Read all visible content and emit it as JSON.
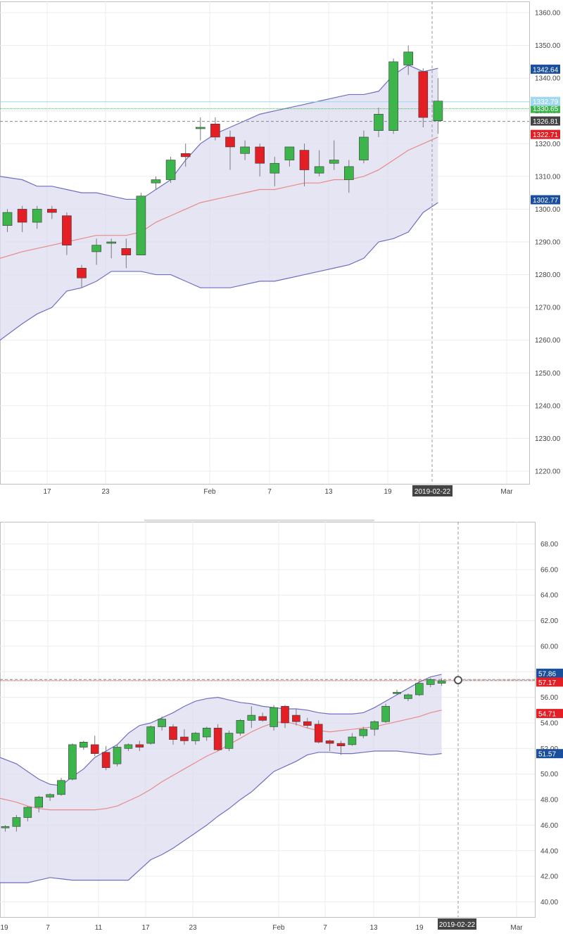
{
  "chart_data": [
    {
      "type": "candlestick",
      "title": "",
      "xlabel": "",
      "ylabel": "",
      "ylim": [
        1215,
        1365
      ],
      "y_ticks": [
        "1220.00",
        "1230.00",
        "1240.00",
        "1250.00",
        "1260.00",
        "1270.00",
        "1280.00",
        "1290.00",
        "1300.00",
        "1310.00",
        "1320.00",
        "1330.00",
        "1340.00",
        "1350.00",
        "1360.00"
      ],
      "x_ticks": [
        "17",
        "23",
        "Feb",
        "7",
        "13",
        "19",
        "Mar"
      ],
      "crosshair_date": "2019-02-22",
      "grid": true,
      "colors": {
        "up": "#3cb54a",
        "down": "#e31e24",
        "band_fill": "#dcdcf0",
        "band_line": "#6f6fc0",
        "ma_line": "#e88a8a"
      },
      "candles": [
        {
          "open": 1295,
          "high": 1300,
          "low": 1293,
          "close": 1299
        },
        {
          "open": 1300,
          "high": 1301,
          "low": 1293,
          "close": 1296
        },
        {
          "open": 1296,
          "high": 1301,
          "low": 1294,
          "close": 1300
        },
        {
          "open": 1300,
          "high": 1301,
          "low": 1297,
          "close": 1299
        },
        {
          "open": 1298,
          "high": 1299,
          "low": 1286,
          "close": 1289
        },
        {
          "open": 1282,
          "high": 1283,
          "low": 1276,
          "close": 1279
        },
        {
          "open": 1287,
          "high": 1291,
          "low": 1283,
          "close": 1289
        },
        {
          "open": 1290,
          "high": 1291,
          "low": 1285,
          "close": 1290
        },
        {
          "open": 1288,
          "high": 1291,
          "low": 1282,
          "close": 1286
        },
        {
          "open": 1286,
          "high": 1305,
          "low": 1286,
          "close": 1304
        },
        {
          "open": 1308,
          "high": 1310,
          "low": 1306,
          "close": 1309
        },
        {
          "open": 1309,
          "high": 1316,
          "low": 1308,
          "close": 1315
        },
        {
          "open": 1317,
          "high": 1320,
          "low": 1313,
          "close": 1316
        },
        {
          "open": 1325,
          "high": 1328,
          "low": 1321,
          "close": 1325
        },
        {
          "open": 1326,
          "high": 1328,
          "low": 1321,
          "close": 1322
        },
        {
          "open": 1322,
          "high": 1324,
          "low": 1312,
          "close": 1319
        },
        {
          "open": 1317,
          "high": 1321,
          "low": 1315,
          "close": 1319
        },
        {
          "open": 1319,
          "high": 1320,
          "low": 1310,
          "close": 1314
        },
        {
          "open": 1311,
          "high": 1316,
          "low": 1307,
          "close": 1314
        },
        {
          "open": 1315,
          "high": 1319,
          "low": 1313,
          "close": 1319
        },
        {
          "open": 1318,
          "high": 1320,
          "low": 1307,
          "close": 1312
        },
        {
          "open": 1311,
          "high": 1318,
          "low": 1310,
          "close": 1313
        },
        {
          "open": 1314,
          "high": 1321,
          "low": 1312,
          "close": 1315
        },
        {
          "open": 1309,
          "high": 1315,
          "low": 1305,
          "close": 1313
        },
        {
          "open": 1315,
          "high": 1324,
          "low": 1314,
          "close": 1322
        },
        {
          "open": 1324,
          "high": 1331,
          "low": 1322,
          "close": 1329
        },
        {
          "open": 1324,
          "high": 1346,
          "low": 1323,
          "close": 1345
        },
        {
          "open": 1344,
          "high": 1350,
          "low": 1341,
          "close": 1348
        },
        {
          "open": 1342,
          "high": 1343,
          "low": 1325,
          "close": 1328
        },
        {
          "open": 1327,
          "high": 1340,
          "low": 1323,
          "close": 1333
        }
      ],
      "bollinger": {
        "upper": [
          1310,
          1309,
          1307,
          1307,
          1306,
          1305,
          1305,
          1304,
          1303,
          1303,
          1306,
          1309,
          1315,
          1320,
          1323,
          1325,
          1327,
          1329,
          1330,
          1331,
          1332,
          1333,
          1334,
          1335,
          1335,
          1336,
          1341,
          1344,
          1342,
          1343
        ],
        "middle": [
          1285,
          1287,
          1288,
          1289,
          1290,
          1291,
          1292,
          1292,
          1292,
          1293,
          1296,
          1298,
          1300,
          1302,
          1303,
          1304,
          1305,
          1306,
          1306,
          1307,
          1308,
          1308,
          1309,
          1309,
          1310,
          1312,
          1315,
          1318,
          1320,
          1322
        ],
        "lower": [
          1260,
          1265,
          1268,
          1270,
          1275,
          1276,
          1278,
          1281,
          1281,
          1281,
          1280,
          1280,
          1278,
          1276,
          1276,
          1276,
          1277,
          1278,
          1278,
          1279,
          1280,
          1281,
          1282,
          1283,
          1285,
          1290,
          1291,
          1293,
          1299,
          1302
        ]
      },
      "hlines": [
        {
          "value": 1330.65,
          "label": "1330.65",
          "style": "green-dotted",
          "tag_color": "#3cb54a"
        },
        {
          "value": 1326.81,
          "label": "1326.81",
          "style": "gray-dashed",
          "tag_color": "#444444"
        },
        {
          "value": 1332.79,
          "label": "1332.79",
          "style": "lightblue",
          "tag_color": "#9fd8ef"
        }
      ],
      "price_tags": [
        {
          "value": 1342.64,
          "label": "1342.64",
          "color": "#1a4f9c"
        },
        {
          "value": 1322.71,
          "label": "1322.71",
          "color": "#e31e24"
        },
        {
          "value": 1302.77,
          "label": "1302.77",
          "color": "#1a4f9c"
        }
      ]
    },
    {
      "type": "candlestick",
      "title": "",
      "xlabel": "",
      "ylabel": "",
      "ylim": [
        40,
        69.5
      ],
      "y_ticks": [
        "40.00",
        "42.00",
        "44.00",
        "46.00",
        "48.00",
        "50.00",
        "52.00",
        "54.00",
        "56.00",
        "58.00",
        "60.00",
        "62.00",
        "64.00",
        "66.00",
        "68.00"
      ],
      "x_ticks": [
        "19",
        "7",
        "11",
        "17",
        "23",
        "Feb",
        "7",
        "13",
        "19",
        "Mar"
      ],
      "crosshair_date": "2019-02-22",
      "grid": true,
      "colors": {
        "up": "#3cb54a",
        "down": "#e31e24",
        "band_fill": "#dcdcf0",
        "band_line": "#6f6fc0",
        "ma_line": "#e88a8a"
      },
      "candles": [
        {
          "open": 45.8,
          "high": 46.0,
          "low": 45.5,
          "close": 45.9
        },
        {
          "open": 45.9,
          "high": 46.8,
          "low": 45.5,
          "close": 46.6
        },
        {
          "open": 46.6,
          "high": 47.5,
          "low": 46.3,
          "close": 47.4
        },
        {
          "open": 47.4,
          "high": 48.3,
          "low": 47.0,
          "close": 48.2
        },
        {
          "open": 48.2,
          "high": 48.5,
          "low": 47.9,
          "close": 48.4
        },
        {
          "open": 48.4,
          "high": 49.7,
          "low": 48.3,
          "close": 49.5
        },
        {
          "open": 49.6,
          "high": 52.4,
          "low": 49.5,
          "close": 52.3
        },
        {
          "open": 52.1,
          "high": 52.6,
          "low": 51.9,
          "close": 52.5
        },
        {
          "open": 52.3,
          "high": 53.0,
          "low": 51.4,
          "close": 51.6
        },
        {
          "open": 51.7,
          "high": 52.2,
          "low": 50.3,
          "close": 50.5
        },
        {
          "open": 50.8,
          "high": 52.3,
          "low": 50.6,
          "close": 52.1
        },
        {
          "open": 52.0,
          "high": 52.4,
          "low": 51.8,
          "close": 52.3
        },
        {
          "open": 52.3,
          "high": 52.6,
          "low": 51.8,
          "close": 52.1
        },
        {
          "open": 52.4,
          "high": 53.8,
          "low": 52.3,
          "close": 53.7
        },
        {
          "open": 53.7,
          "high": 54.5,
          "low": 53.4,
          "close": 54.3
        },
        {
          "open": 53.7,
          "high": 53.9,
          "low": 52.3,
          "close": 52.7
        },
        {
          "open": 52.9,
          "high": 53.5,
          "low": 52.3,
          "close": 52.6
        },
        {
          "open": 52.6,
          "high": 53.3,
          "low": 52.3,
          "close": 53.2
        },
        {
          "open": 52.9,
          "high": 53.7,
          "low": 52.6,
          "close": 53.6
        },
        {
          "open": 53.6,
          "high": 53.9,
          "low": 51.8,
          "close": 51.9
        },
        {
          "open": 52.0,
          "high": 53.4,
          "low": 51.8,
          "close": 53.2
        },
        {
          "open": 53.2,
          "high": 54.3,
          "low": 53.0,
          "close": 54.2
        },
        {
          "open": 54.2,
          "high": 55.3,
          "low": 53.6,
          "close": 54.6
        },
        {
          "open": 54.5,
          "high": 54.8,
          "low": 54.1,
          "close": 54.2
        },
        {
          "open": 53.7,
          "high": 55.4,
          "low": 53.4,
          "close": 55.2
        },
        {
          "open": 55.3,
          "high": 55.4,
          "low": 53.6,
          "close": 54.0
        },
        {
          "open": 54.6,
          "high": 55.1,
          "low": 53.8,
          "close": 54.1
        },
        {
          "open": 54.1,
          "high": 54.4,
          "low": 53.6,
          "close": 53.8
        },
        {
          "open": 53.9,
          "high": 54.2,
          "low": 52.4,
          "close": 52.5
        },
        {
          "open": 52.6,
          "high": 52.7,
          "low": 51.8,
          "close": 52.4
        },
        {
          "open": 52.4,
          "high": 52.6,
          "low": 51.5,
          "close": 52.2
        },
        {
          "open": 52.3,
          "high": 53.2,
          "low": 52.2,
          "close": 52.9
        },
        {
          "open": 53.0,
          "high": 53.7,
          "low": 52.8,
          "close": 53.5
        },
        {
          "open": 53.5,
          "high": 54.2,
          "low": 53.0,
          "close": 54.1
        },
        {
          "open": 54.1,
          "high": 55.5,
          "low": 54.0,
          "close": 55.3
        },
        {
          "open": 56.4,
          "high": 56.6,
          "low": 56.2,
          "close": 56.4
        },
        {
          "open": 55.9,
          "high": 56.3,
          "low": 55.7,
          "close": 56.2
        },
        {
          "open": 56.2,
          "high": 57.3,
          "low": 56.1,
          "close": 57.1
        },
        {
          "open": 57.0,
          "high": 57.5,
          "low": 56.8,
          "close": 57.4
        },
        {
          "open": 57.1,
          "high": 57.5,
          "low": 56.9,
          "close": 57.3
        }
      ],
      "bollinger": {
        "upper": [
          51.3,
          50.8,
          50.2,
          49.6,
          49.2,
          49.1,
          49.8,
          50.4,
          51.3,
          51.8,
          52.3,
          53.2,
          53.8,
          54.0,
          54.4,
          54.8,
          55.3,
          55.7,
          55.9,
          56.0,
          55.8,
          55.6,
          55.5,
          55.3,
          55.2,
          55.1,
          55.1,
          55.0,
          54.8,
          54.7,
          54.7,
          54.7,
          54.8,
          55.2,
          55.7,
          56.2,
          56.7,
          57.2,
          57.6,
          57.8
        ],
        "middle": [
          48.1,
          47.8,
          47.5,
          47.3,
          47.2,
          47.2,
          47.2,
          47.2,
          47.2,
          47.3,
          47.5,
          47.9,
          48.3,
          48.8,
          49.4,
          49.9,
          50.4,
          50.9,
          51.4,
          51.8,
          52.3,
          52.8,
          53.3,
          53.7,
          54.0,
          54.1,
          53.9,
          53.6,
          53.4,
          53.3,
          53.4,
          53.5,
          53.6,
          53.7,
          53.9,
          54.1,
          54.3,
          54.5,
          54.8,
          55.0
        ],
        "lower": [
          41.5,
          41.5,
          41.5,
          41.7,
          41.9,
          41.8,
          41.7,
          41.7,
          41.7,
          41.7,
          41.7,
          41.7,
          42.5,
          43.3,
          43.7,
          44.2,
          44.8,
          45.4,
          46.0,
          46.7,
          47.3,
          48.0,
          48.6,
          49.4,
          50.2,
          50.6,
          51.0,
          51.5,
          51.7,
          51.7,
          51.6,
          51.6,
          51.7,
          51.8,
          51.8,
          51.8,
          51.7,
          51.6,
          51.5,
          51.6
        ]
      },
      "hlines": [
        {
          "value": 57.31,
          "label": "57.31",
          "style": "red-dotted",
          "tag_color": "#444444"
        },
        {
          "value": 57.4,
          "label": "",
          "style": "gray-dashed",
          "tag_color": "#444444"
        }
      ],
      "price_tags": [
        {
          "value": 57.86,
          "label": "57.86",
          "color": "#1a4f9c"
        },
        {
          "value": 57.17,
          "label": "57.17",
          "color": "#e31e24"
        },
        {
          "value": 54.71,
          "label": "54.71",
          "color": "#e31e24"
        },
        {
          "value": 51.57,
          "label": "51.57",
          "color": "#1a4f9c"
        }
      ]
    }
  ]
}
